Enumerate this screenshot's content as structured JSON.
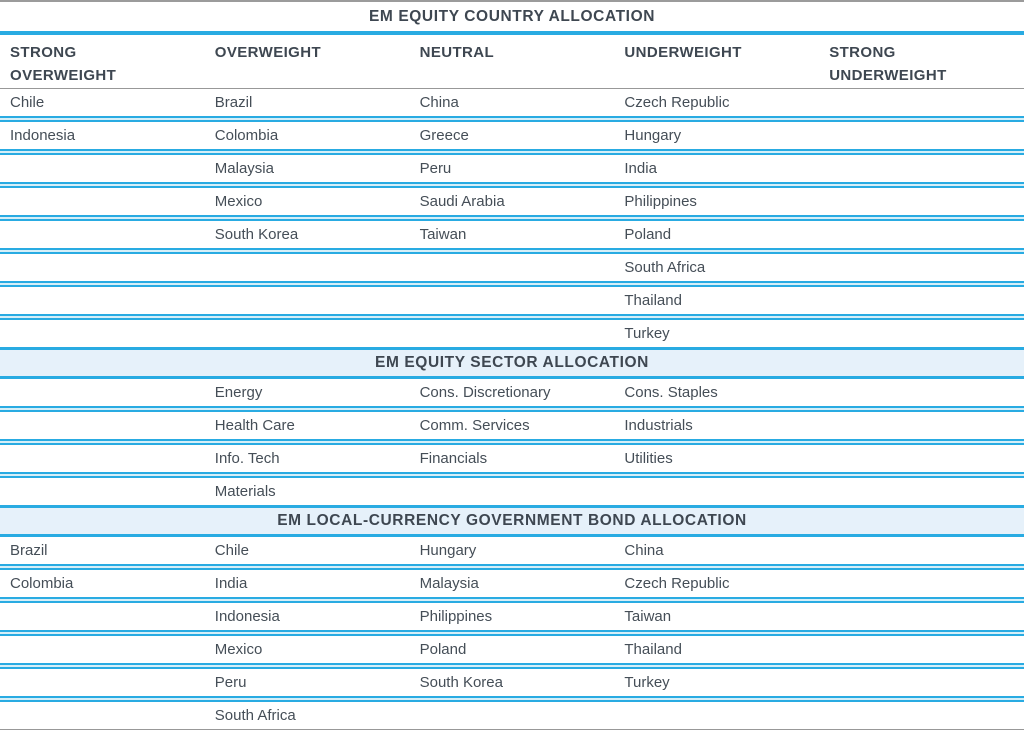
{
  "colors": {
    "accent_line": "#29ABE2",
    "separator_fill": "#D6EFF8",
    "band_background": "#E6F1FA",
    "heading_text": "#3E4751",
    "body_text": "#454E57",
    "rule_gray": "#9B9B9B"
  },
  "table": {
    "columns": [
      "STRONG OVERWEIGHT",
      "OVERWEIGHT",
      "NEUTRAL",
      "UNDERWEIGHT",
      "STRONG UNDERWEIGHT"
    ],
    "sections": [
      {
        "title": "EM EQUITY COUNTRY ALLOCATION",
        "band": false,
        "rows": [
          [
            "Chile",
            "Brazil",
            "China",
            "Czech Republic",
            ""
          ],
          [
            "Indonesia",
            "Colombia",
            "Greece",
            "Hungary",
            ""
          ],
          [
            "",
            "Malaysia",
            "Peru",
            "India",
            ""
          ],
          [
            "",
            "Mexico",
            "Saudi Arabia",
            "Philippines",
            ""
          ],
          [
            "",
            "South Korea",
            "Taiwan",
            "Poland",
            ""
          ],
          [
            "",
            "",
            "",
            "South Africa",
            ""
          ],
          [
            "",
            "",
            "",
            "Thailand",
            ""
          ],
          [
            "",
            "",
            "",
            "Turkey",
            ""
          ]
        ]
      },
      {
        "title": "EM EQUITY SECTOR ALLOCATION",
        "band": true,
        "rows": [
          [
            "",
            "Energy",
            "Cons. Discretionary",
            "Cons. Staples",
            ""
          ],
          [
            "",
            "Health Care",
            "Comm. Services",
            "Industrials",
            ""
          ],
          [
            "",
            "Info. Tech",
            "Financials",
            "Utilities",
            ""
          ],
          [
            "",
            "Materials",
            "",
            "",
            ""
          ]
        ]
      },
      {
        "title": "EM LOCAL-CURRENCY GOVERNMENT BOND ALLOCATION",
        "band": true,
        "rows": [
          [
            "Brazil",
            "Chile",
            "Hungary",
            "China",
            ""
          ],
          [
            "Colombia",
            "India",
            "Malaysia",
            "Czech Republic",
            ""
          ],
          [
            "",
            "Indonesia",
            "Philippines",
            "Taiwan",
            ""
          ],
          [
            "",
            "Mexico",
            "Poland",
            "Thailand",
            ""
          ],
          [
            "",
            "Peru",
            "South Korea",
            "Turkey",
            ""
          ],
          [
            "",
            "South Africa",
            "",
            "",
            ""
          ]
        ]
      }
    ]
  }
}
